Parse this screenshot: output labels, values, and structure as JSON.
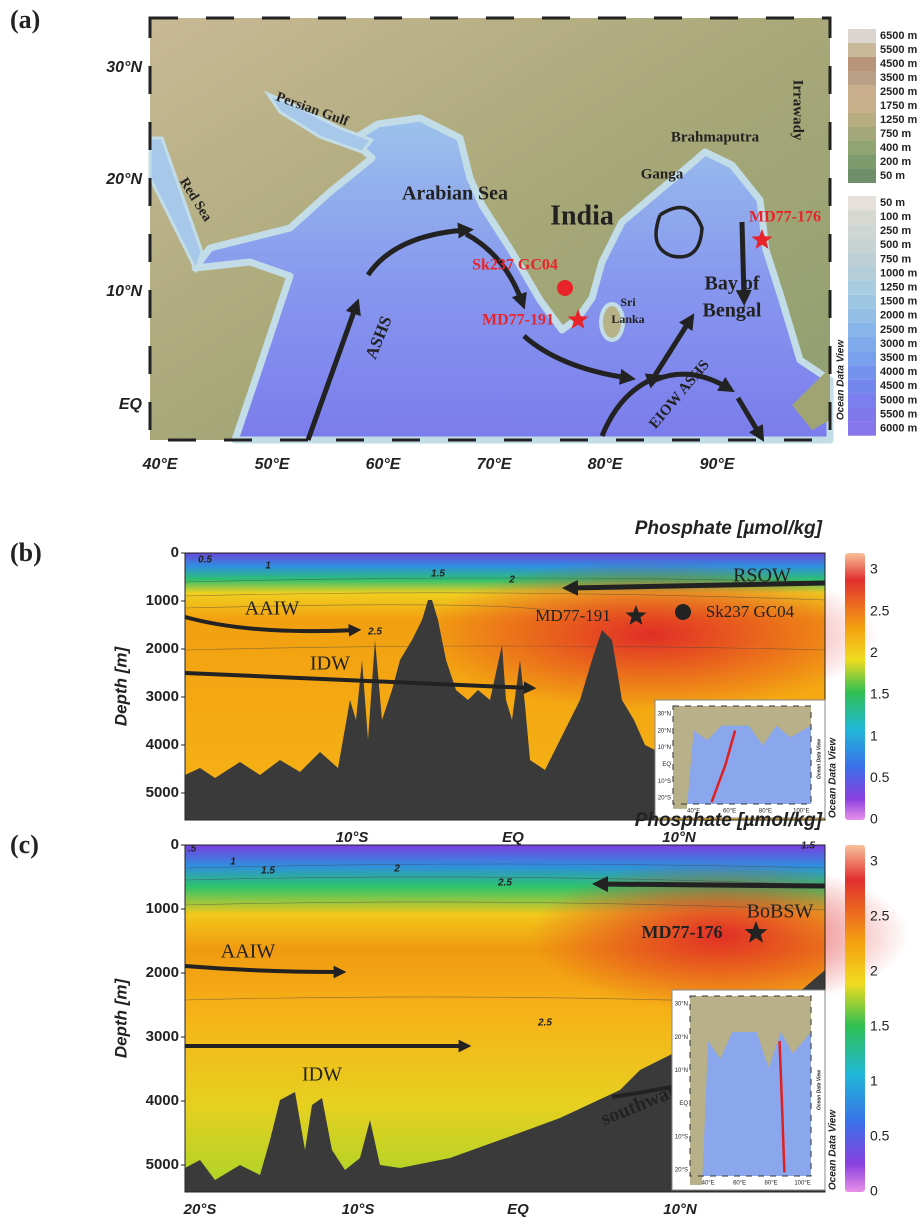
{
  "panel_a": {
    "label": "(a)",
    "lat_labels": [
      "30°N",
      "20°N",
      "10°N",
      "EQ"
    ],
    "lon_labels": [
      "40°E",
      "50°E",
      "60°E",
      "70°E",
      "80°E",
      "90°E"
    ],
    "legend_land": [
      "6500 m",
      "5500 m",
      "4500 m",
      "3500 m",
      "2500 m",
      "1750 m",
      "1250 m",
      "750 m",
      "400 m",
      "200 m",
      "50 m"
    ],
    "legend_ocean": [
      "50 m",
      "100 m",
      "250 m",
      "500 m",
      "750 m",
      "1000 m",
      "1250 m",
      "1500 m",
      "2000 m",
      "2500 m",
      "3000 m",
      "3500 m",
      "4000 m",
      "4500 m",
      "5000 m",
      "5500 m",
      "6000 m"
    ],
    "legend_source": "Ocean Data View",
    "places": [
      "Persian Gulf",
      "Red Sea",
      "Arabian Sea",
      "India",
      "Brahmaputra",
      "Ganga",
      "Irrawady",
      "Bay of",
      "Bengal",
      "Sri",
      "Lanka"
    ],
    "currents": [
      "ASHS",
      "EIOW ASHS"
    ],
    "sites": [
      "Sk237 GC04",
      "MD77-191",
      "MD77-176"
    ]
  },
  "panel_b": {
    "label": "(b)",
    "title": "Phosphate [µmol/kg]",
    "y_axis_label": "Depth [m]",
    "depth_ticks": [
      0,
      1000,
      2000,
      3000,
      4000,
      5000
    ],
    "x_ticks": [
      "10°S",
      "EQ",
      "10°N"
    ],
    "colorbar_ticks": [
      3,
      2.5,
      2,
      1.5,
      1,
      0.5,
      0
    ],
    "colorbar_source": "Ocean Data View",
    "contour_labels": [
      "0.5",
      "1",
      "1.5",
      "2",
      "2.5"
    ],
    "water_masses": [
      "RSOW",
      "AAIW",
      "IDW"
    ],
    "sites": [
      "MD77-191",
      "Sk237 GC04"
    ],
    "inset": {
      "lat_labels": [
        "30°N",
        "20°N",
        "10°N",
        "EQ",
        "10°S",
        "20°S"
      ],
      "lon_labels": [
        "40°E",
        "60°E",
        "80°E",
        "100°E"
      ],
      "source": "Ocean Data View"
    }
  },
  "panel_c": {
    "label": "(c)",
    "title": "Phosphate [µmol/kg]",
    "y_axis_label": "Depth [m]",
    "depth_ticks": [
      0,
      1000,
      2000,
      3000,
      4000,
      5000
    ],
    "x_ticks": [
      "20°S",
      "10°S",
      "EQ",
      "10°N"
    ],
    "colorbar_ticks": [
      3,
      2.5,
      2,
      1.5,
      1,
      0.5,
      0
    ],
    "colorbar_source": "Ocean Data View",
    "contour_labels": [
      ".5",
      "1",
      "1.5",
      "2",
      "2.5",
      "2.5",
      "1.5"
    ],
    "water_masses": [
      "BoBSW",
      "AAIW",
      "IDW",
      "southward return flow"
    ],
    "sites": [
      "MD77-176"
    ],
    "inset": {
      "lat_labels": [
        "30°N",
        "20°N",
        "10°N",
        "EQ",
        "10°S",
        "20°S"
      ],
      "lon_labels": [
        "40°E",
        "60°E",
        "80°E",
        "100°E"
      ],
      "source": "Ocean Data View"
    }
  }
}
